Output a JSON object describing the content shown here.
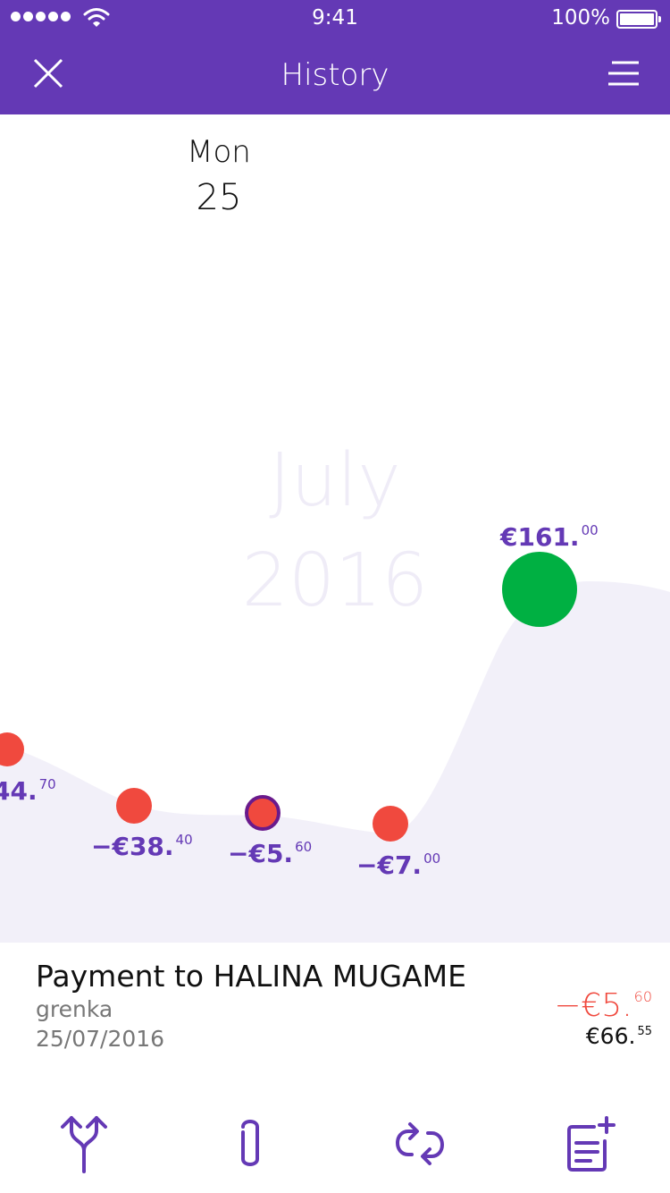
{
  "status_bar": {
    "time": "9:41",
    "battery": "100%",
    "signal_icon": "signal-dots-icon",
    "wifi_icon": "wifi-icon",
    "battery_icon": "battery-icon"
  },
  "nav": {
    "title": "History",
    "close_icon": "close-icon",
    "menu_icon": "menu-icon"
  },
  "day": {
    "weekday": "Mon",
    "date": "25"
  },
  "chart_data": {
    "type": "area",
    "watermark_month": "July",
    "watermark_year": "2016",
    "currency": "€",
    "points": [
      {
        "label_main": "44.",
        "label_cents": "70",
        "value": -44.7,
        "selected": false
      },
      {
        "label_main": "−€38.",
        "label_cents": "40",
        "value": -38.4,
        "selected": false
      },
      {
        "label_main": "−€5.",
        "label_cents": "60",
        "value": -5.6,
        "selected": true
      },
      {
        "label_main": "−€7.",
        "label_cents": "00",
        "value": -7.0,
        "selected": false
      },
      {
        "label_main": "€161.",
        "label_cents": "00",
        "value": 161.0,
        "selected": false
      }
    ],
    "colors": {
      "debit": "#f0493e",
      "credit": "#00b042",
      "selected_ring": "#6a1a8c",
      "area": "#f2f0f9",
      "label": "#6439b5"
    }
  },
  "detail": {
    "title": "Payment to HALINA MUGAME",
    "category": "grenka",
    "date": "25/07/2016",
    "amount_main": "−€5.",
    "amount_cents": "60",
    "balance_main": "€66.",
    "balance_cents": "55"
  },
  "toolbar": {
    "split_icon": "split-icon",
    "attach_icon": "paperclip-icon",
    "repeat_icon": "repeat-icon",
    "note_icon": "add-note-icon"
  },
  "colors": {
    "brand": "#6439b5",
    "debit": "#f0493e",
    "credit": "#00b042"
  }
}
